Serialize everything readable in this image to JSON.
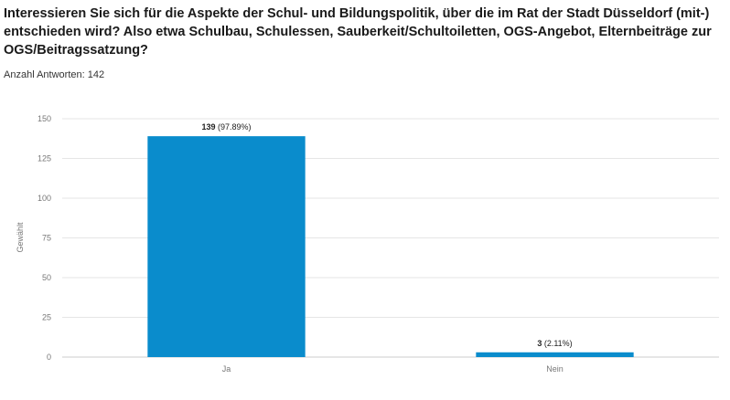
{
  "survey": {
    "question": "Interessieren Sie sich für die Aspekte der Schul- und Bildungspolitik, über die im Rat der Stadt Düsseldorf (mit-) entschieden wird? Also etwa Schulbau, Schulessen, Sauberkeit/Schultoiletten, OGS-Angebot, Elternbeiträge zur OGS/Beitragssatzung?",
    "answers_count_label": "Anzahl Antworten: 142"
  },
  "colors": {
    "bar": "#0a8ccc",
    "grid": "#e6e6e6",
    "baseline": "#cccccc"
  },
  "chart_data": {
    "type": "bar",
    "categories": [
      "Ja",
      "Nein"
    ],
    "values": [
      139,
      3
    ],
    "value_labels": [
      "139",
      "3"
    ],
    "percent_labels": [
      "(97.89%)",
      "(2.11%)"
    ],
    "ylabel": "Gewählt",
    "xlabel": "",
    "ylim": [
      0,
      150
    ],
    "yticks": [
      0,
      25,
      50,
      75,
      100,
      125,
      150
    ],
    "grid": true
  }
}
